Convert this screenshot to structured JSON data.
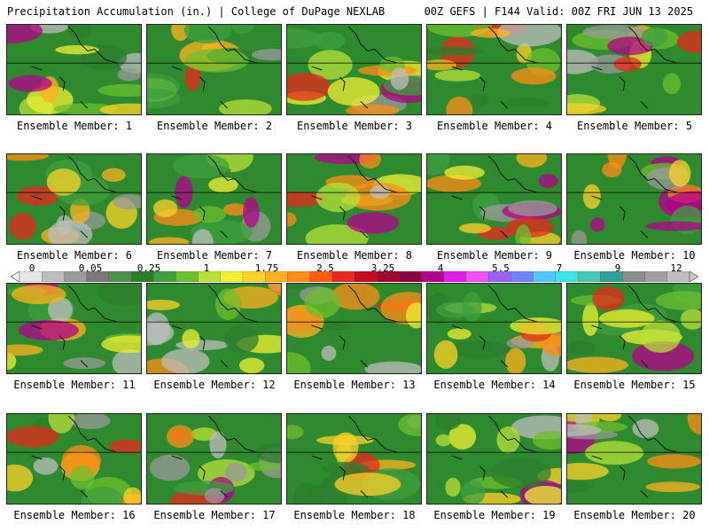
{
  "header": {
    "left_title": "Precipitation Accumulation (in.) | College of DuPage NEXLAB",
    "right_title": "00Z GEFS | F144 Valid: 00Z FRI JUN 13 2025"
  },
  "panels": [
    {
      "label": "Ensemble Member: 1"
    },
    {
      "label": "Ensemble Member: 2"
    },
    {
      "label": "Ensemble Member: 3"
    },
    {
      "label": "Ensemble Member: 4"
    },
    {
      "label": "Ensemble Member: 5"
    },
    {
      "label": "Ensemble Member: 6"
    },
    {
      "label": "Ensemble Member: 7"
    },
    {
      "label": "Ensemble Member: 8"
    },
    {
      "label": "Ensemble Member: 9"
    },
    {
      "label": "Ensemble Member: 10"
    },
    {
      "label": "Ensemble Member: 11"
    },
    {
      "label": "Ensemble Member: 12"
    },
    {
      "label": "Ensemble Member: 13"
    },
    {
      "label": "Ensemble Member: 14"
    },
    {
      "label": "Ensemble Member: 15"
    },
    {
      "label": "Ensemble Member: 16"
    },
    {
      "label": "Ensemble Member: 17"
    },
    {
      "label": "Ensemble Member: 18"
    },
    {
      "label": "Ensemble Member: 19"
    },
    {
      "label": "Ensemble Member: 20"
    }
  ],
  "colorbar": {
    "tick_labels": [
      "0",
      "0.05",
      "0.25",
      "1",
      "1.75",
      "2.5",
      "3.25",
      "4",
      "5.5",
      "7",
      "9",
      "12"
    ],
    "colors": [
      "#e6e6e6",
      "#bdbdbd",
      "#9a9a9a",
      "#787878",
      "#4f8f4f",
      "#2e7d2e",
      "#3f9f3f",
      "#6cbf2e",
      "#b8e03a",
      "#f0f032",
      "#ffd22a",
      "#ffb21e",
      "#ff8c14",
      "#ff5a0f",
      "#e8281e",
      "#c80a1e",
      "#a00a28",
      "#8c0046",
      "#b4008c",
      "#dc1ee6",
      "#f050f0",
      "#9a60f0",
      "#6e82ff",
      "#50c8ff",
      "#3ce6e6",
      "#46c8b4",
      "#32a096",
      "#8c8c8c",
      "#a0a0a0",
      "#bebebe"
    ]
  }
}
